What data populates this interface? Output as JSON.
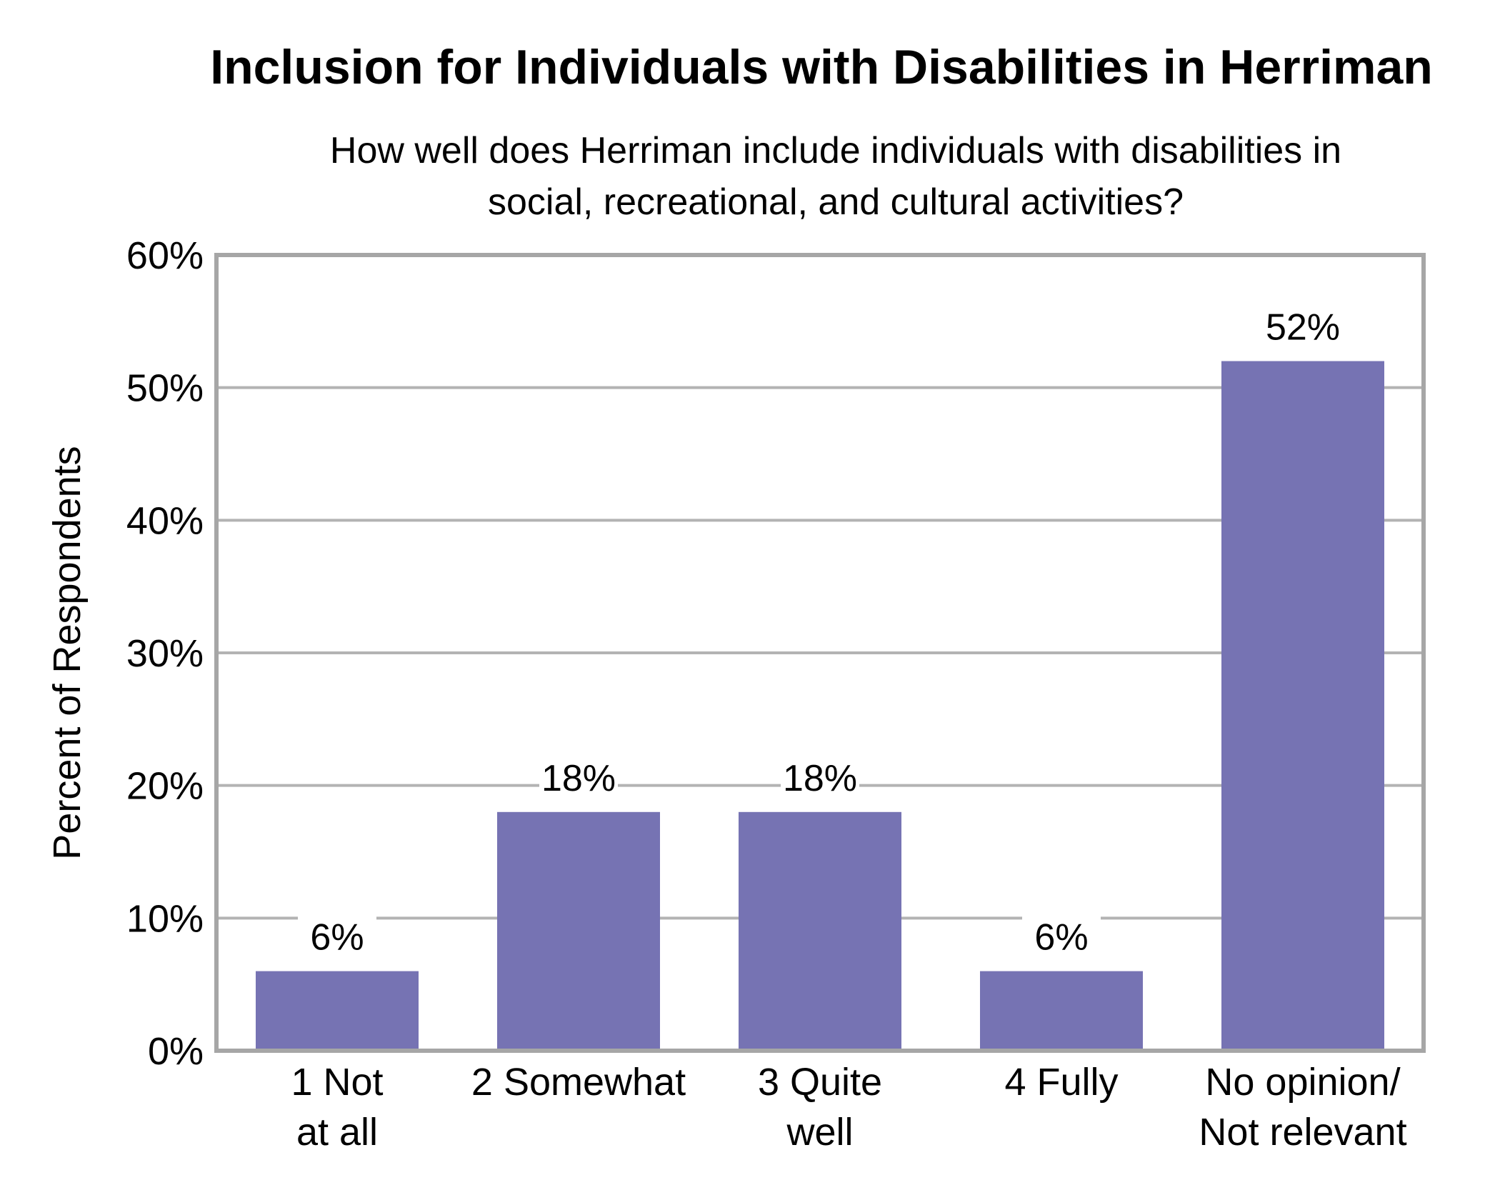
{
  "chart_data": {
    "type": "bar",
    "title": "Inclusion for Individuals with Disabilities in Herriman",
    "subtitle_lines": [
      "How well does Herriman include individuals with disabilities in",
      "social, recreational, and cultural activities?"
    ],
    "ylabel": "Percent of Respondents",
    "xlabel": "",
    "ylim": [
      0,
      60
    ],
    "yticks": [
      0,
      10,
      20,
      30,
      40,
      50,
      60
    ],
    "ytick_labels": [
      "0%",
      "10%",
      "20%",
      "30%",
      "40%",
      "50%",
      "60%"
    ],
    "categories": [
      [
        "1 Not",
        "at all"
      ],
      [
        "2 Somewhat"
      ],
      [
        "3 Quite",
        "well"
      ],
      [
        "4 Fully"
      ],
      [
        "No opinion/",
        "Not relevant"
      ]
    ],
    "values": [
      6,
      18,
      18,
      6,
      52
    ],
    "data_labels": [
      "6%",
      "18%",
      "18%",
      "6%",
      "52%"
    ],
    "grid": true,
    "legend": "none",
    "colors": {
      "bar": "#7673b3",
      "grid": "#b3b3b3",
      "frame": "#a6a6a6"
    }
  }
}
